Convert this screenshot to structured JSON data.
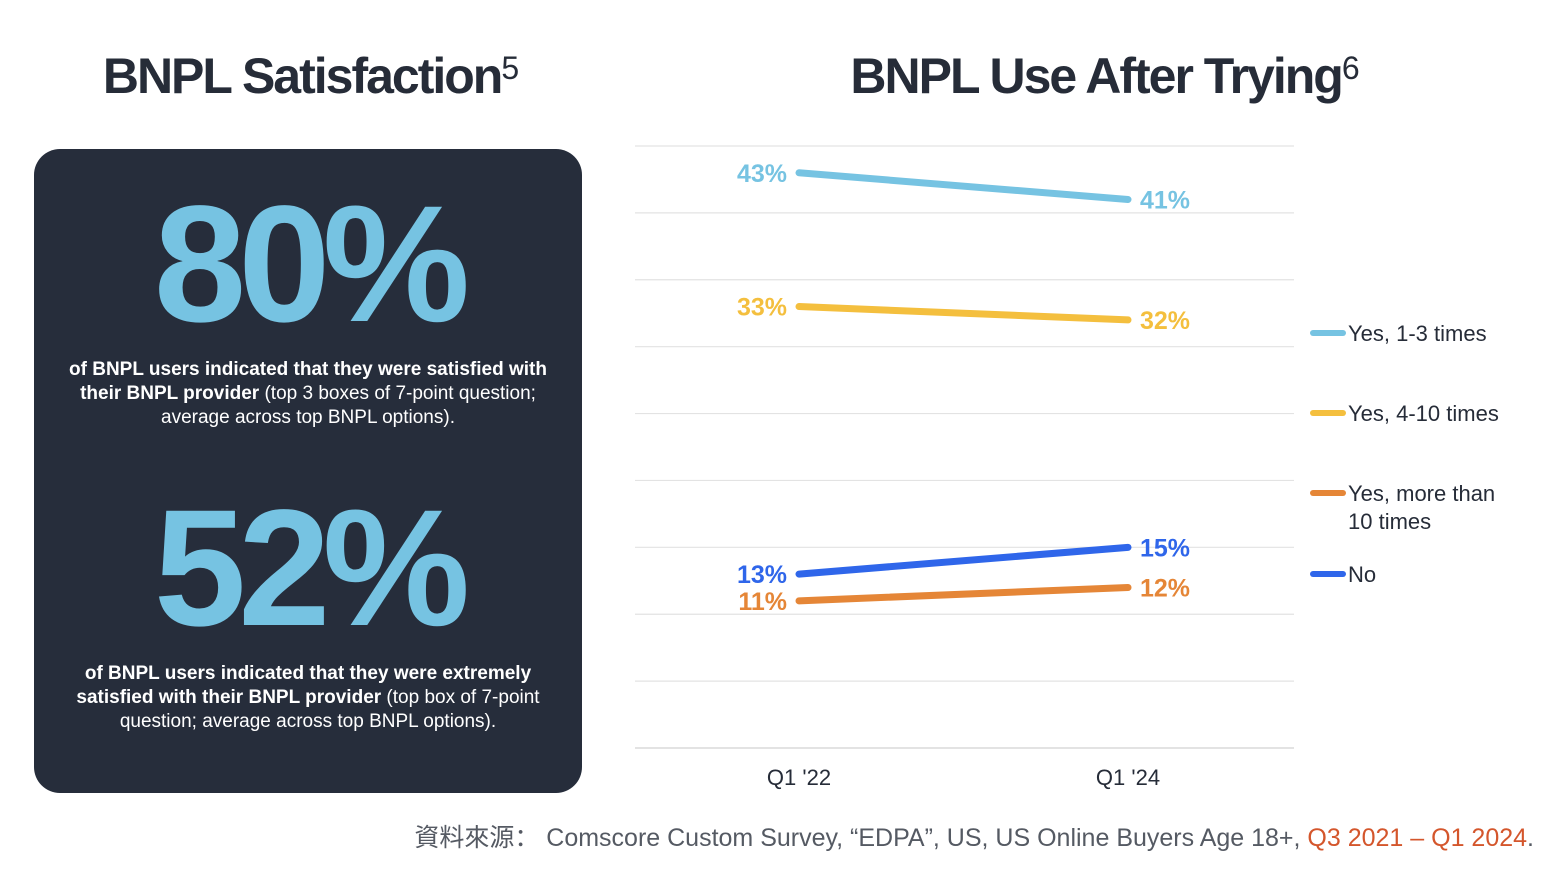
{
  "left": {
    "title": "BNPL Satisfaction",
    "title_sup": "5",
    "stat1": {
      "value": "80%",
      "bold": "of BNPL users indicated that they were satisfied with their BNPL provider",
      "rest": " (top 3 boxes of 7-point question; average across top BNPL options)."
    },
    "stat2": {
      "value": "52%",
      "bold": "of BNPL users indicated that they were extremely satisfied with their BNPL provider",
      "rest": " (top box of 7-point question; average across top BNPL options)."
    }
  },
  "right": {
    "title": "BNPL Use After Trying",
    "title_sup": "6"
  },
  "chart_data": {
    "type": "line",
    "title": "BNPL Use After Trying",
    "categories": [
      "Q1 '22",
      "Q1 '24"
    ],
    "ylim": [
      0,
      45
    ],
    "grid": true,
    "legend_position": "right",
    "series": [
      {
        "name": "Yes, 1-3 times",
        "values": [
          43,
          41
        ],
        "labels": [
          "43%",
          "41%"
        ],
        "color": "#76c3e2"
      },
      {
        "name": "Yes, 4-10 times",
        "values": [
          33,
          32
        ],
        "labels": [
          "33%",
          "32%"
        ],
        "color": "#f4bf3e"
      },
      {
        "name": "Yes, more than 10 times",
        "values": [
          11,
          12
        ],
        "labels": [
          "11%",
          "12%"
        ],
        "color": "#e58637"
      },
      {
        "name": "No",
        "values": [
          13,
          15
        ],
        "labels": [
          "13%",
          "15%"
        ],
        "color": "#2f66ea"
      }
    ]
  },
  "source": {
    "prefix": "資料來源： Comscore Custom Survey, “EDPA”, US, US Online Buyers Age 18+, ",
    "highlight": "Q3 2021 – Q1 2024",
    "suffix": "."
  }
}
